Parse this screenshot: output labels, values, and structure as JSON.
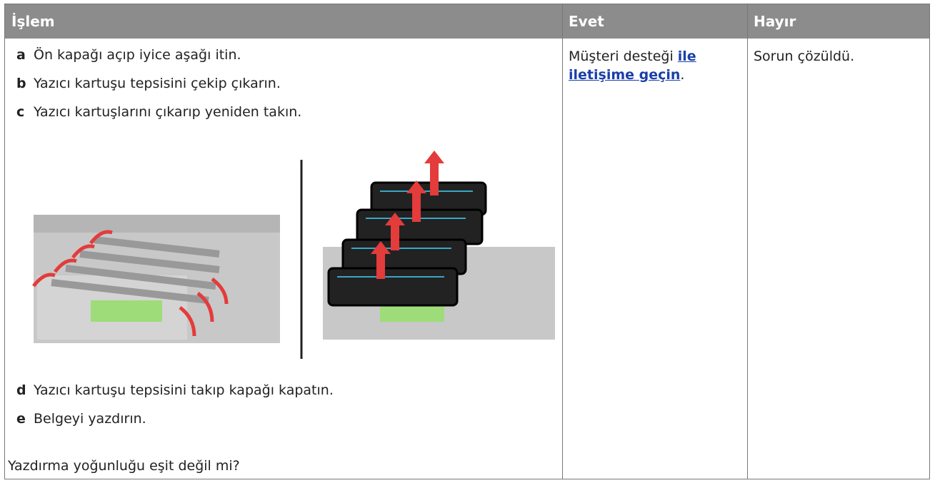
{
  "header": {
    "columns": [
      "İşlem",
      "Evet",
      "Hayır"
    ]
  },
  "table": {
    "steps": [
      {
        "letter": "a",
        "text": "Ön kapağı açıp iyice aşağı itin."
      },
      {
        "letter": "b",
        "text": "Yazıcı kartuşu tepsisini çekip çıkarın."
      },
      {
        "letter": "c",
        "text": "Yazıcı kartuşlarını çıkarıp yeniden takın."
      },
      {
        "letter": "d",
        "text": "Yazıcı kartuşu tepsisini takıp kapağı kapatın."
      },
      {
        "letter": "e",
        "text": "Belgeyi yazdırın."
      }
    ],
    "question": "Yazdırma yoğunluğu eşit değil mi?",
    "yes": {
      "text": "Müşteri desteği",
      "link": "ile iletişime geçin",
      "end": "."
    },
    "no": "Sorun çözüldü."
  }
}
